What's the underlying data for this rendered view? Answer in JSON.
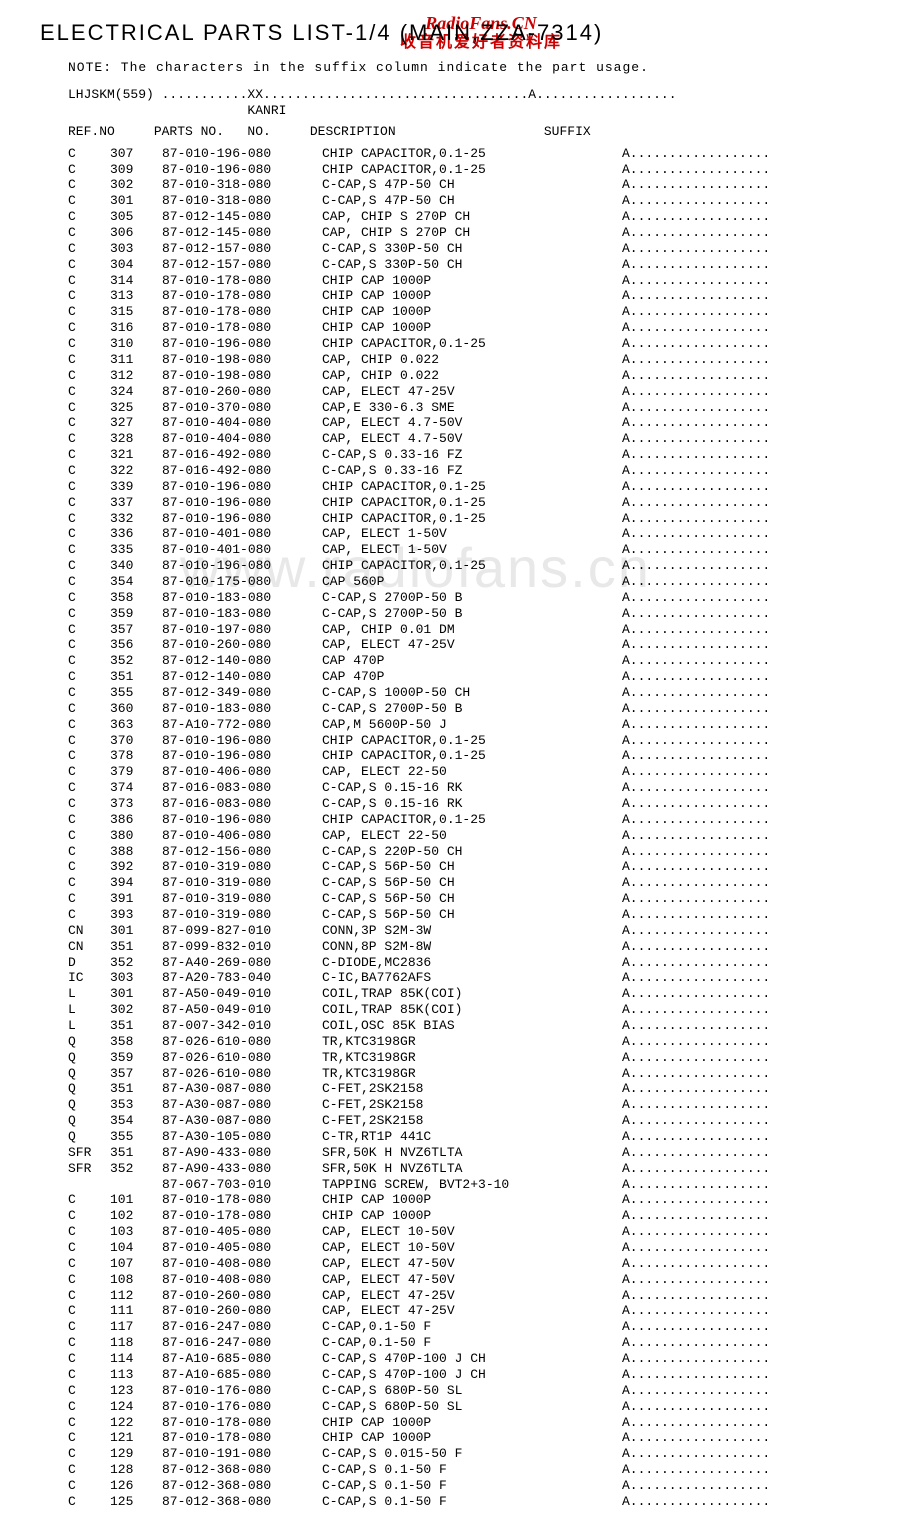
{
  "title": "ELECTRICAL PARTS LIST-1/4 (MAIN,ZZA-7314)",
  "watermark_top_line1": "RadioFans.CN",
  "watermark_top_line2": "收音机爱好者资料库",
  "watermark_mid": "www.radiofans.cn",
  "note": "NOTE: The characters in the suffix column indicate the part usage.",
  "legend_line1": "LHJSKM(559) ...........XX..................................A..................",
  "legend_line2": "                       KANRI",
  "header_line": "REF.NO     PARTS NO.   NO.     DESCRIPTION                   SUFFIX",
  "suffix_default": "A..................",
  "rows": [
    [
      "C",
      "307",
      "87-010-196-080",
      "CHIP CAPACITOR,0.1-25"
    ],
    [
      "C",
      "309",
      "87-010-196-080",
      "CHIP CAPACITOR,0.1-25"
    ],
    [
      "C",
      "302",
      "87-010-318-080",
      "C-CAP,S 47P-50 CH"
    ],
    [
      "C",
      "301",
      "87-010-318-080",
      "C-CAP,S 47P-50 CH"
    ],
    [
      "C",
      "305",
      "87-012-145-080",
      "CAP, CHIP S 270P CH"
    ],
    [
      "C",
      "306",
      "87-012-145-080",
      "CAP, CHIP S 270P CH"
    ],
    [
      "C",
      "303",
      "87-012-157-080",
      "C-CAP,S 330P-50 CH"
    ],
    [
      "C",
      "304",
      "87-012-157-080",
      "C-CAP,S 330P-50 CH"
    ],
    [
      "C",
      "314",
      "87-010-178-080",
      "CHIP CAP 1000P"
    ],
    [
      "C",
      "313",
      "87-010-178-080",
      "CHIP CAP 1000P"
    ],
    [
      "C",
      "315",
      "87-010-178-080",
      "CHIP CAP 1000P"
    ],
    [
      "C",
      "316",
      "87-010-178-080",
      "CHIP CAP 1000P"
    ],
    [
      "C",
      "310",
      "87-010-196-080",
      "CHIP CAPACITOR,0.1-25"
    ],
    [
      "C",
      "311",
      "87-010-198-080",
      "CAP, CHIP 0.022"
    ],
    [
      "C",
      "312",
      "87-010-198-080",
      "CAP, CHIP 0.022"
    ],
    [
      "C",
      "324",
      "87-010-260-080",
      "CAP, ELECT 47-25V"
    ],
    [
      "C",
      "325",
      "87-010-370-080",
      "CAP,E 330-6.3 SME"
    ],
    [
      "C",
      "327",
      "87-010-404-080",
      "CAP, ELECT 4.7-50V"
    ],
    [
      "C",
      "328",
      "87-010-404-080",
      "CAP, ELECT 4.7-50V"
    ],
    [
      "C",
      "321",
      "87-016-492-080",
      "C-CAP,S 0.33-16 FZ"
    ],
    [
      "C",
      "322",
      "87-016-492-080",
      "C-CAP,S 0.33-16 FZ"
    ],
    [
      "C",
      "339",
      "87-010-196-080",
      "CHIP CAPACITOR,0.1-25"
    ],
    [
      "C",
      "337",
      "87-010-196-080",
      "CHIP CAPACITOR,0.1-25"
    ],
    [
      "C",
      "332",
      "87-010-196-080",
      "CHIP CAPACITOR,0.1-25"
    ],
    [
      "C",
      "336",
      "87-010-401-080",
      "CAP, ELECT 1-50V"
    ],
    [
      "C",
      "335",
      "87-010-401-080",
      "CAP, ELECT 1-50V"
    ],
    [
      "C",
      "340",
      "87-010-196-080",
      "CHIP CAPACITOR,0.1-25"
    ],
    [
      "C",
      "354",
      "87-010-175-080",
      "CAP 560P"
    ],
    [
      "C",
      "358",
      "87-010-183-080",
      "C-CAP,S 2700P-50 B"
    ],
    [
      "C",
      "359",
      "87-010-183-080",
      "C-CAP,S 2700P-50 B"
    ],
    [
      "C",
      "357",
      "87-010-197-080",
      "CAP, CHIP 0.01 DM"
    ],
    [
      "C",
      "356",
      "87-010-260-080",
      "CAP, ELECT 47-25V"
    ],
    [
      "C",
      "352",
      "87-012-140-080",
      "CAP 470P"
    ],
    [
      "C",
      "351",
      "87-012-140-080",
      "CAP 470P"
    ],
    [
      "C",
      "355",
      "87-012-349-080",
      "C-CAP,S 1000P-50 CH"
    ],
    [
      "C",
      "360",
      "87-010-183-080",
      "C-CAP,S 2700P-50 B"
    ],
    [
      "C",
      "363",
      "87-A10-772-080",
      "CAP,M 5600P-50 J"
    ],
    [
      "C",
      "370",
      "87-010-196-080",
      "CHIP CAPACITOR,0.1-25"
    ],
    [
      "C",
      "378",
      "87-010-196-080",
      "CHIP CAPACITOR,0.1-25"
    ],
    [
      "C",
      "379",
      "87-010-406-080",
      "CAP, ELECT 22-50"
    ],
    [
      "C",
      "374",
      "87-016-083-080",
      "C-CAP,S 0.15-16 RK"
    ],
    [
      "C",
      "373",
      "87-016-083-080",
      "C-CAP,S 0.15-16 RK"
    ],
    [
      "C",
      "386",
      "87-010-196-080",
      "CHIP CAPACITOR,0.1-25"
    ],
    [
      "C",
      "380",
      "87-010-406-080",
      "CAP, ELECT 22-50"
    ],
    [
      "C",
      "388",
      "87-012-156-080",
      "C-CAP,S 220P-50 CH"
    ],
    [
      "C",
      "392",
      "87-010-319-080",
      "C-CAP,S 56P-50 CH"
    ],
    [
      "C",
      "394",
      "87-010-319-080",
      "C-CAP,S 56P-50 CH"
    ],
    [
      "C",
      "391",
      "87-010-319-080",
      "C-CAP,S 56P-50 CH"
    ],
    [
      "C",
      "393",
      "87-010-319-080",
      "C-CAP,S 56P-50 CH"
    ],
    [
      "CN",
      "301",
      "87-099-827-010",
      "CONN,3P S2M-3W"
    ],
    [
      "CN",
      "351",
      "87-099-832-010",
      "CONN,8P S2M-8W"
    ],
    [
      "D",
      "352",
      "87-A40-269-080",
      "C-DIODE,MC2836"
    ],
    [
      "IC",
      "303",
      "87-A20-783-040",
      "C-IC,BA7762AFS"
    ],
    [
      "L",
      "301",
      "87-A50-049-010",
      "COIL,TRAP 85K(COI)"
    ],
    [
      "L",
      "302",
      "87-A50-049-010",
      "COIL,TRAP 85K(COI)"
    ],
    [
      "L",
      "351",
      "87-007-342-010",
      "COIL,OSC 85K BIAS"
    ],
    [
      "Q",
      "358",
      "87-026-610-080",
      "TR,KTC3198GR"
    ],
    [
      "Q",
      "359",
      "87-026-610-080",
      "TR,KTC3198GR"
    ],
    [
      "Q",
      "357",
      "87-026-610-080",
      "TR,KTC3198GR"
    ],
    [
      "Q",
      "351",
      "87-A30-087-080",
      "C-FET,2SK2158"
    ],
    [
      "Q",
      "353",
      "87-A30-087-080",
      "C-FET,2SK2158"
    ],
    [
      "Q",
      "354",
      "87-A30-087-080",
      "C-FET,2SK2158"
    ],
    [
      "Q",
      "355",
      "87-A30-105-080",
      "C-TR,RT1P 441C"
    ],
    [
      "SFR",
      "351",
      "87-A90-433-080",
      "SFR,50K H NVZ6TLTA"
    ],
    [
      "SFR",
      "352",
      "87-A90-433-080",
      "SFR,50K H NVZ6TLTA"
    ],
    [
      "",
      "",
      "87-067-703-010",
      "TAPPING SCREW, BVT2+3-10"
    ],
    [
      "C",
      "101",
      "87-010-178-080",
      "CHIP CAP 1000P"
    ],
    [
      "C",
      "102",
      "87-010-178-080",
      "CHIP CAP 1000P"
    ],
    [
      "C",
      "103",
      "87-010-405-080",
      "CAP, ELECT 10-50V"
    ],
    [
      "C",
      "104",
      "87-010-405-080",
      "CAP, ELECT 10-50V"
    ],
    [
      "C",
      "107",
      "87-010-408-080",
      "CAP, ELECT 47-50V"
    ],
    [
      "C",
      "108",
      "87-010-408-080",
      "CAP, ELECT 47-50V"
    ],
    [
      "C",
      "112",
      "87-010-260-080",
      "CAP, ELECT 47-25V"
    ],
    [
      "C",
      "111",
      "87-010-260-080",
      "CAP, ELECT 47-25V"
    ],
    [
      "C",
      "117",
      "87-016-247-080",
      "C-CAP,0.1-50 F"
    ],
    [
      "C",
      "118",
      "87-016-247-080",
      "C-CAP,0.1-50 F"
    ],
    [
      "C",
      "114",
      "87-A10-685-080",
      "C-CAP,S 470P-100 J CH"
    ],
    [
      "C",
      "113",
      "87-A10-685-080",
      "C-CAP,S 470P-100 J CH"
    ],
    [
      "C",
      "123",
      "87-010-176-080",
      "C-CAP,S 680P-50 SL"
    ],
    [
      "C",
      "124",
      "87-010-176-080",
      "C-CAP,S 680P-50 SL"
    ],
    [
      "C",
      "122",
      "87-010-178-080",
      "CHIP CAP 1000P"
    ],
    [
      "C",
      "121",
      "87-010-178-080",
      "CHIP CAP 1000P"
    ],
    [
      "C",
      "129",
      "87-010-191-080",
      "C-CAP,S 0.015-50 F"
    ],
    [
      "C",
      "128",
      "87-012-368-080",
      "C-CAP,S 0.1-50 F"
    ],
    [
      "C",
      "126",
      "87-012-368-080",
      "C-CAP,S 0.1-50 F"
    ],
    [
      "C",
      "125",
      "87-012-368-080",
      "C-CAP,S 0.1-50 F"
    ]
  ]
}
